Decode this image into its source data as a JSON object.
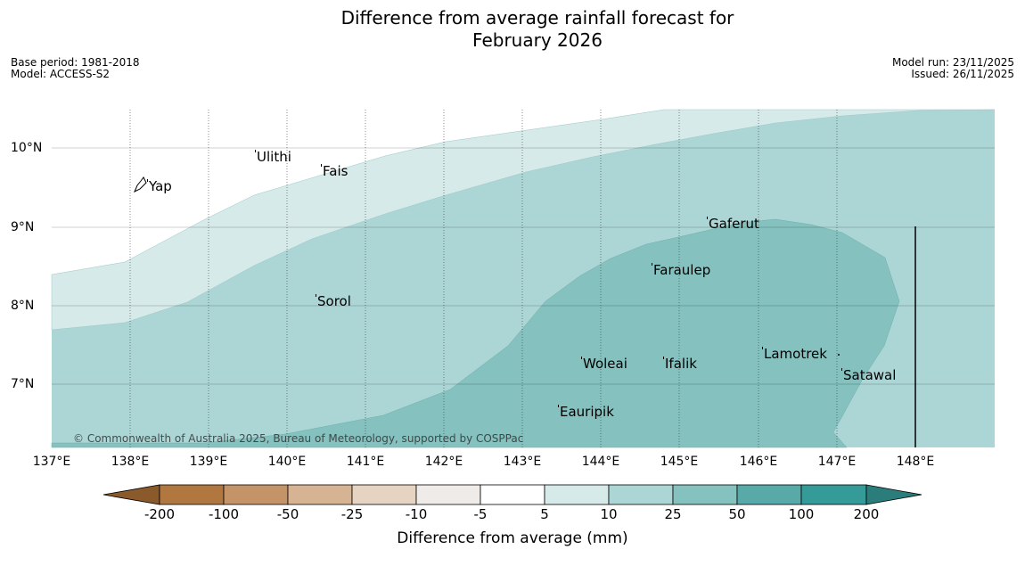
{
  "title": {
    "line1": "Difference from average rainfall forecast for",
    "line2": "February 2026"
  },
  "meta": {
    "base_period": "Base period: 1981-2018",
    "model": "Model: ACCESS-S2",
    "model_run": "Model run: 23/11/2025",
    "issued": "Issued: 26/11/2025"
  },
  "axes": {
    "lat_labels": [
      "10°N",
      "9°N",
      "8°N",
      "7°N"
    ],
    "lon_labels": [
      "137°E",
      "138°E",
      "139°E",
      "140°E",
      "141°E",
      "142°E",
      "143°E",
      "144°E",
      "145°E",
      "146°E",
      "147°E",
      "148°E"
    ]
  },
  "places": {
    "ulithi": "Ulithi",
    "fais": "Fais",
    "yap": "Yap",
    "gaferut": "Gaferut",
    "faraulep": "Faraulep",
    "sorol": "Sorol",
    "lamotrek": "Lamotrek",
    "satawal": "Satawal",
    "woleai": "Woleai",
    "ifalik": "Ifalik",
    "eauripik": "Eauripik"
  },
  "copyright": "© Commonwealth of Australia 2025, Bureau of Meteorology, supported by COSPPac",
  "colorbar": {
    "title": "Difference from average (mm)",
    "labels": [
      "-200",
      "-100",
      "-50",
      "-25",
      "-10",
      "-5",
      "5",
      "10",
      "25",
      "50",
      "100",
      "200"
    ],
    "colors": [
      "#8b5a2b",
      "#b07840",
      "#c49468",
      "#d6b493",
      "#e6d3c2",
      "#efebe8",
      "#ffffff",
      "#d6eae9",
      "#acd6d5",
      "#84c1bf",
      "#58aaa8",
      "#359b98",
      "#2b7d7b"
    ]
  }
}
